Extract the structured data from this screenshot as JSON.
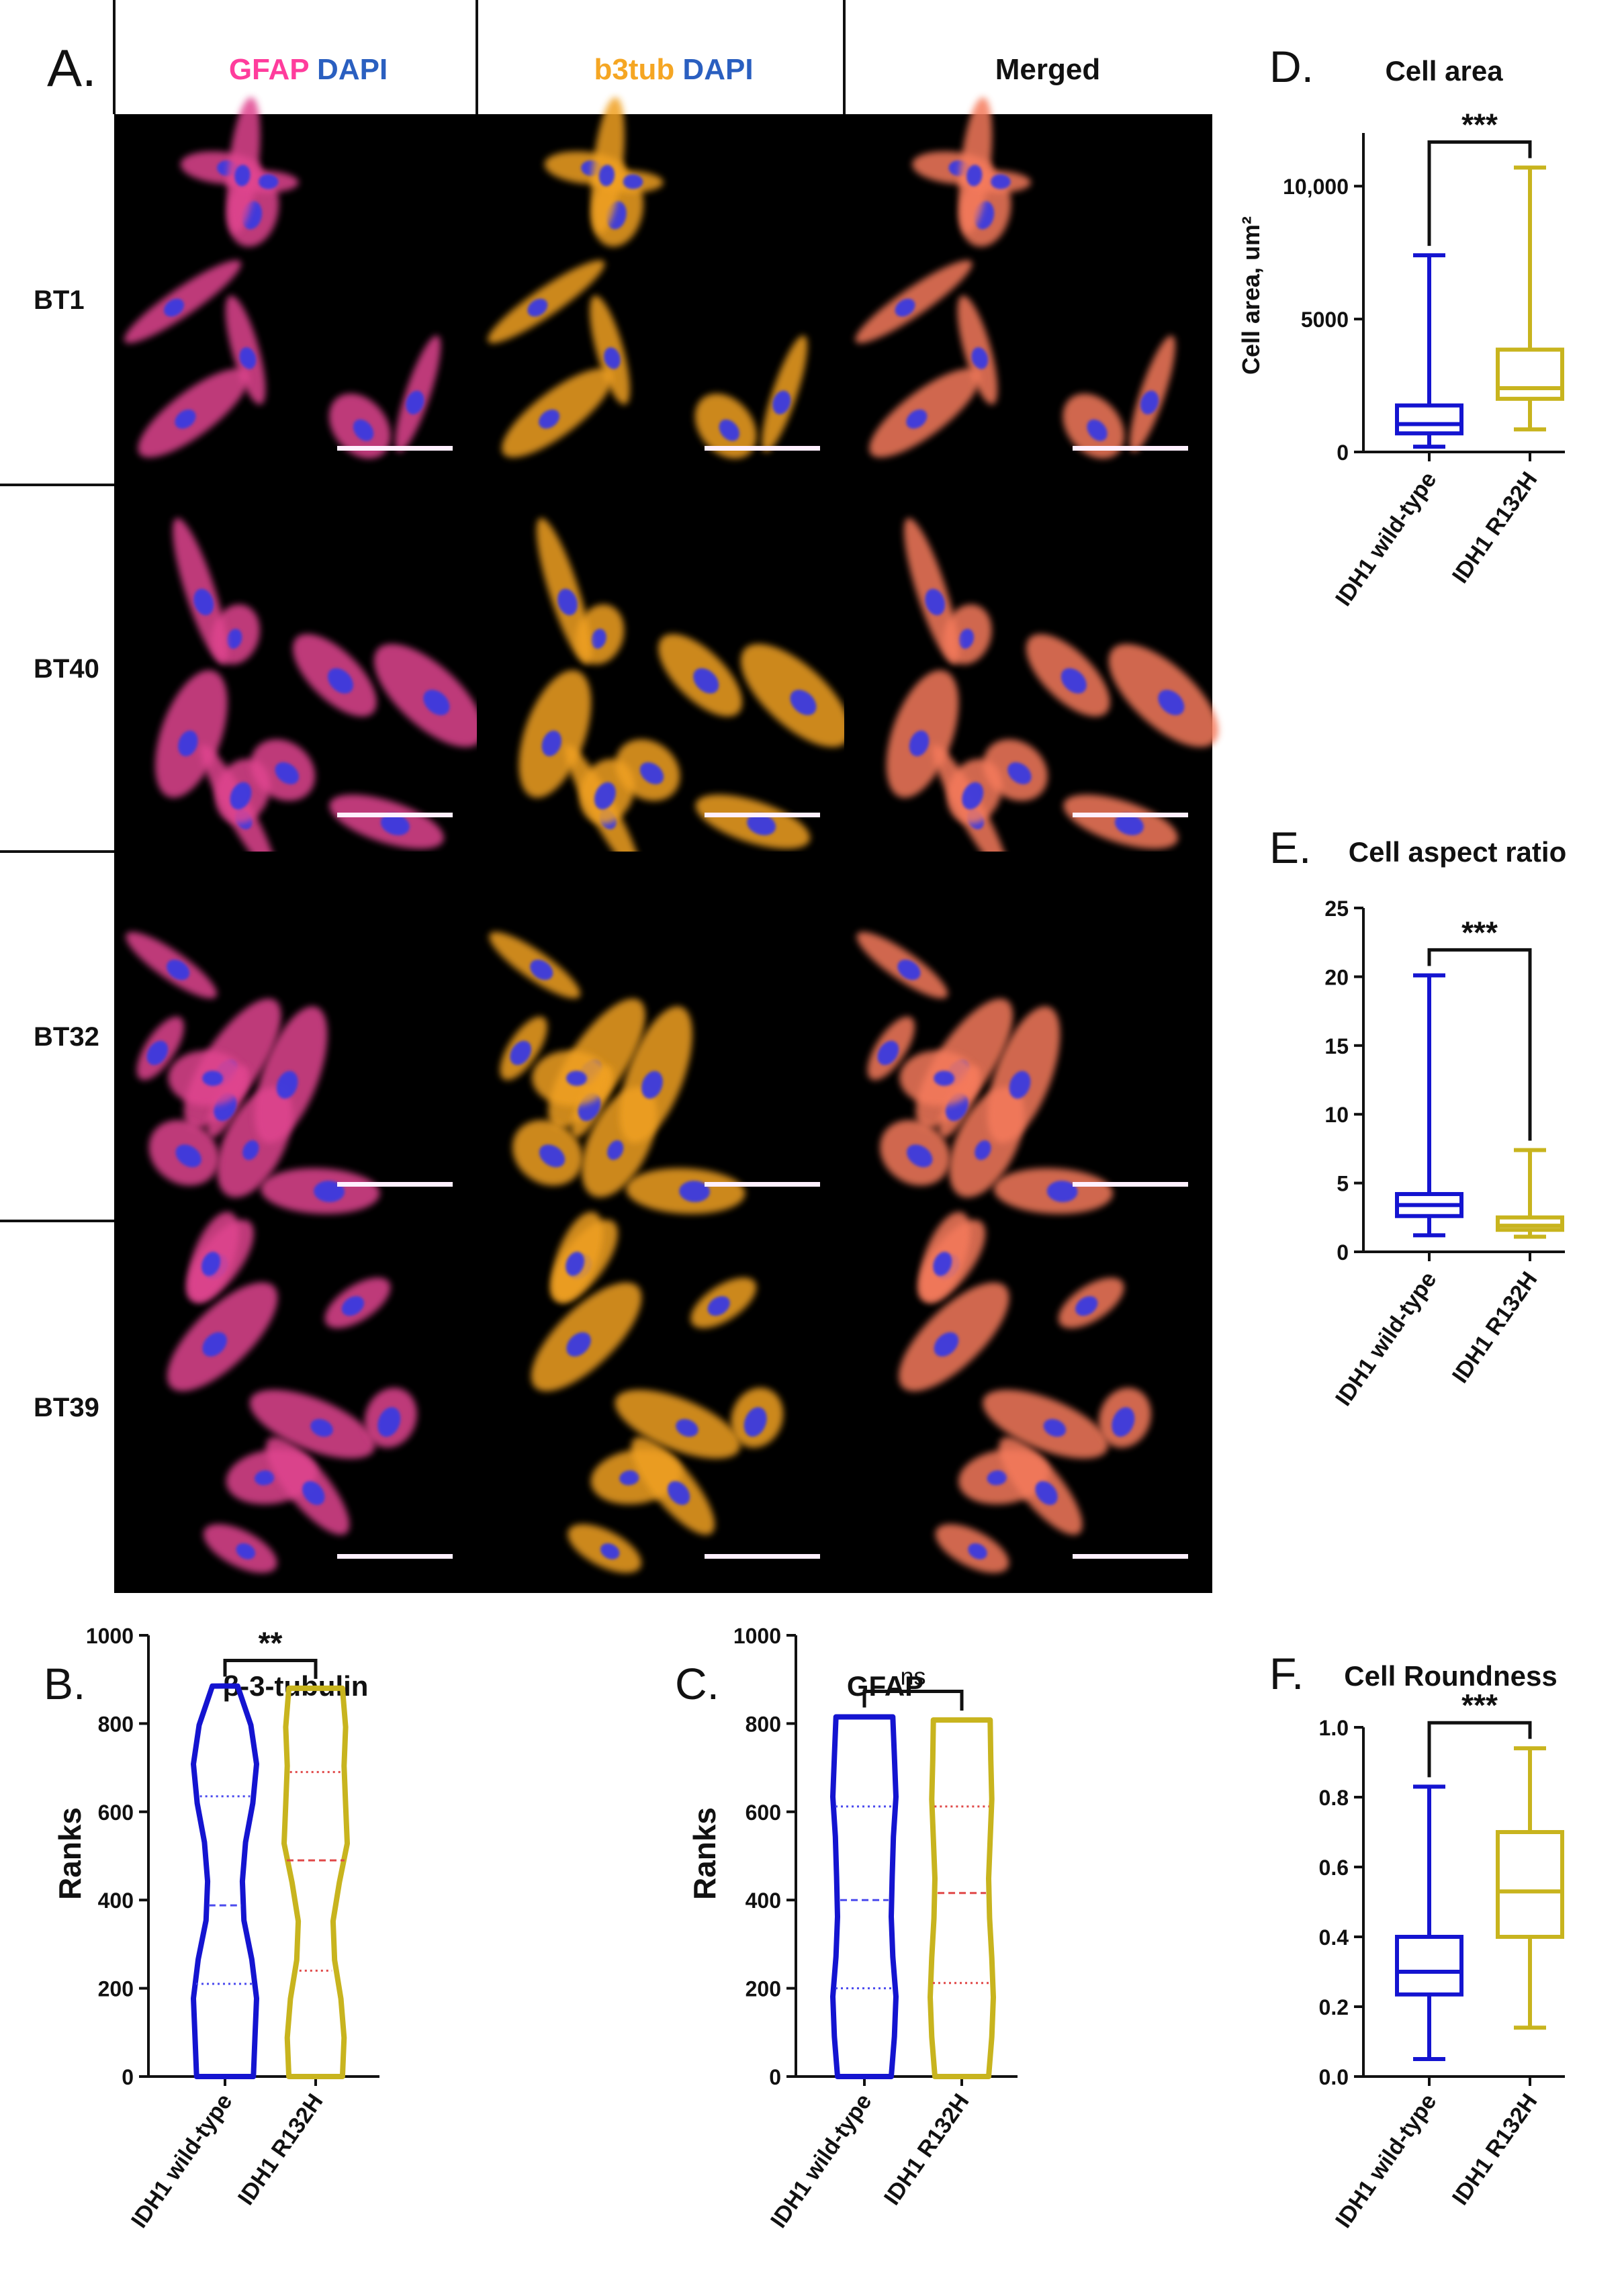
{
  "colors": {
    "wt": "#1414d0",
    "r132h": "#c8b41e",
    "gfap": "#ff3c9c",
    "dapi": "#2a5fc0",
    "b3tub": "#f5a623",
    "cell_pink": "#e0448f",
    "cell_orange": "#f0a020",
    "nucleus": "#3a3ae0",
    "scale_bar": "#fff0ff",
    "text": "#111111"
  },
  "panelA": {
    "label": "A.",
    "headers": [
      {
        "parts": [
          {
            "text": "GFAP",
            "color": "gfap"
          },
          {
            "text": " DAPI",
            "color": "dapi"
          }
        ]
      },
      {
        "parts": [
          {
            "text": "b3tub",
            "color": "b3tub"
          },
          {
            "text": " DAPI",
            "color": "dapi"
          }
        ]
      },
      {
        "parts": [
          {
            "text": "Merged",
            "color": "text"
          }
        ]
      }
    ],
    "rows": [
      "BT1",
      "BT40",
      "BT32",
      "BT39"
    ]
  },
  "chart_data": [
    {
      "id": "B",
      "panel_label": "B.",
      "type": "violin",
      "title": "β-3-tubulin",
      "ylabel": "Ranks",
      "ylim": [
        0,
        1000
      ],
      "yticks": [
        0,
        200,
        400,
        600,
        800,
        1000
      ],
      "categories": [
        "IDH1 wild-type",
        "IDH1 R132H"
      ],
      "series": [
        {
          "name": "IDH1 wild-type",
          "min": 0,
          "max": 885,
          "q1": 210,
          "median": 388,
          "q3": 635,
          "width_profile": [
            0.9,
            0.95,
            1.0,
            0.85,
            0.6,
            0.55,
            0.65,
            0.88,
            1.0,
            0.82,
            0.4
          ]
        },
        {
          "name": "IDH1 R132H",
          "min": 0,
          "max": 880,
          "q1": 240,
          "median": 490,
          "q3": 690,
          "width_profile": [
            0.85,
            0.9,
            0.8,
            0.6,
            0.55,
            0.75,
            1.0,
            0.95,
            0.9,
            0.95,
            0.85
          ]
        }
      ],
      "significance": "**"
    },
    {
      "id": "C",
      "panel_label": "C.",
      "type": "violin",
      "title": "GFAP",
      "ylabel": "Ranks",
      "ylim": [
        0,
        1000
      ],
      "yticks": [
        0,
        200,
        400,
        600,
        800,
        1000
      ],
      "categories": [
        "IDH1 wild-type",
        "IDH1 R132H"
      ],
      "series": [
        {
          "name": "IDH1 wild-type",
          "min": 0,
          "max": 815,
          "q1": 200,
          "median": 400,
          "q3": 612,
          "width_profile": [
            0.85,
            0.95,
            1.0,
            0.9,
            0.85,
            0.88,
            0.92,
            1.0,
            0.95,
            0.9
          ]
        },
        {
          "name": "IDH1 R132H",
          "min": 0,
          "max": 808,
          "q1": 212,
          "median": 416,
          "q3": 612,
          "width_profile": [
            0.85,
            0.95,
            1.0,
            0.95,
            0.88,
            0.85,
            0.9,
            0.95,
            0.92,
            0.9
          ]
        }
      ],
      "significance": "ns"
    },
    {
      "id": "D",
      "panel_label": "D.",
      "type": "box",
      "title": "Cell area",
      "ylabel": "Cell area, um²",
      "ylim": [
        0,
        12000
      ],
      "yticks": [
        0,
        5000,
        10000
      ],
      "ytick_labels": [
        "0",
        "5000",
        "10,000"
      ],
      "categories": [
        "IDH1 wild-type",
        "IDH1 R132H"
      ],
      "series": [
        {
          "name": "IDH1 wild-type",
          "min": 200,
          "q1": 700,
          "median": 1050,
          "q3": 1750,
          "max": 7400
        },
        {
          "name": "IDH1 R132H",
          "min": 850,
          "q1": 2000,
          "median": 2400,
          "q3": 3850,
          "max": 10700
        }
      ],
      "significance": "***"
    },
    {
      "id": "E",
      "panel_label": "E.",
      "type": "box",
      "title": "Cell aspect ratio",
      "ylabel": "",
      "ylim": [
        0,
        25
      ],
      "yticks": [
        0,
        5,
        10,
        15,
        20,
        25
      ],
      "categories": [
        "IDH1 wild-type",
        "IDH1 R132H"
      ],
      "series": [
        {
          "name": "IDH1 wild-type",
          "min": 1.2,
          "q1": 2.6,
          "median": 3.4,
          "q3": 4.2,
          "max": 20.1
        },
        {
          "name": "IDH1 R132H",
          "min": 1.1,
          "q1": 1.6,
          "median": 1.9,
          "q3": 2.5,
          "max": 7.4
        }
      ],
      "significance": "***"
    },
    {
      "id": "F",
      "panel_label": "F.",
      "type": "box",
      "title": "Cell Roundness",
      "ylabel": "",
      "ylim": [
        0,
        1.0
      ],
      "yticks": [
        0,
        0.2,
        0.4,
        0.6,
        0.8,
        1.0
      ],
      "ytick_labels": [
        "0.0",
        "0.2",
        "0.4",
        "0.6",
        "0.8",
        "1.0"
      ],
      "categories": [
        "IDH1 wild-type",
        "IDH1 R132H"
      ],
      "series": [
        {
          "name": "IDH1 wild-type",
          "min": 0.05,
          "q1": 0.235,
          "median": 0.3,
          "q3": 0.4,
          "max": 0.83
        },
        {
          "name": "IDH1 R132H",
          "min": 0.14,
          "q1": 0.4,
          "median": 0.53,
          "q3": 0.7,
          "max": 0.94
        }
      ],
      "significance": "***"
    }
  ]
}
